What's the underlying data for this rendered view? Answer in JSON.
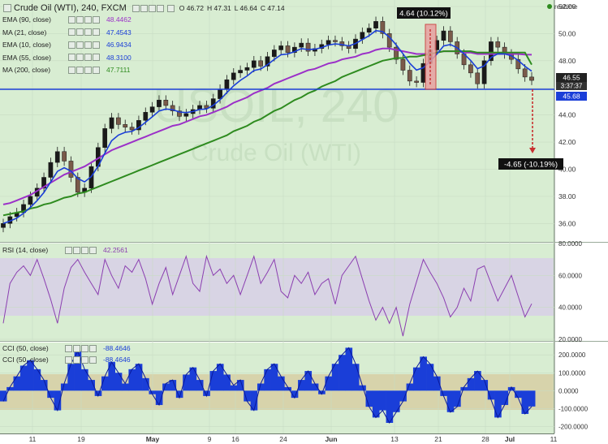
{
  "header": {
    "symbol_title": "Crude Oil (WTI), 240, FXCM",
    "ohlc_open": "O 46.72",
    "ohlc_high": "H 47.31",
    "ohlc_low": "L 46.64",
    "ohlc_close": "C 47.14",
    "realtime_label": "realtime"
  },
  "watermark": {
    "line1": "USOIL, 240",
    "line2": "Crude Oil (WTI)"
  },
  "price_panel": {
    "indicators": [
      {
        "label": "EMA (90, close)",
        "value": "48.4462",
        "color": "#9b30c8"
      },
      {
        "label": "MA (21, close)",
        "value": "47.4543",
        "color": "#1a3ed8"
      },
      {
        "label": "EMA (10, close)",
        "value": "46.9434",
        "color": "#1a3ed8"
      },
      {
        "label": "EMA (55, close)",
        "value": "48.3100",
        "color": "#1a3ed8"
      },
      {
        "label": "MA (200, close)",
        "value": "47.7111",
        "color": "#2e8b1f"
      }
    ],
    "current_price": "46.55",
    "countdown": "3:37:37",
    "support_price": "45.68",
    "up_annotation": "4.64 (10.12%)",
    "down_annotation": "-4.65 (-10.19%)"
  },
  "rsi_panel": {
    "label": "RSI (14, close)",
    "value": "42.2561"
  },
  "cci_panel": {
    "labels": [
      {
        "label": "CCI (50, close)",
        "value": "-88.4646"
      },
      {
        "label": "CCI (50, close)",
        "value": "-88.4646"
      }
    ]
  },
  "colors": {
    "bg": "#d8edd2",
    "up_candle": "#1a1a1a",
    "ema90": "#9b30c8",
    "blue": "#1a3ed8",
    "ma200": "#2e8b1f",
    "rsi_line": "#8b3fb0",
    "cci_fill": "#1a3ed8",
    "rsi_band": "#d8d0e6",
    "cci_band": "#d7cfa6",
    "support_line": "#1a3ed8",
    "red_arrow": "#c83030"
  },
  "chart_data": [
    {
      "type": "line",
      "title": "Crude Oil (WTI), 240, FXCM",
      "x_tick_labels": [
        "11",
        "19",
        "May",
        "9",
        "16",
        "24",
        "Jun",
        "13",
        "21",
        "28",
        "Jul",
        "11"
      ],
      "ylim": [
        35,
        52
      ],
      "y_tick_labels": [
        "52.00",
        "50.00",
        "48.00",
        "46.00",
        "44.00",
        "42.00",
        "40.00",
        "38.00",
        "36.00"
      ],
      "series": [
        {
          "name": "Close",
          "values": [
            36.0,
            36.5,
            36.8,
            37.4,
            38.0,
            38.6,
            39.4,
            40.5,
            41.3,
            40.6,
            39.4,
            38.3,
            38.6,
            40.2,
            41.6,
            43.0,
            43.8,
            43.3,
            43.1,
            42.9,
            43.6,
            44.2,
            44.6,
            45.1,
            44.7,
            44.3,
            43.9,
            44.1,
            44.4,
            44.7,
            44.5,
            45.2,
            45.9,
            46.6,
            47.1,
            47.3,
            47.5,
            48.0,
            47.6,
            48.3,
            48.8,
            49.1,
            48.6,
            49.0,
            49.3,
            48.7,
            48.9,
            49.2,
            49.5,
            49.4,
            49.1,
            48.9,
            49.6,
            50.1,
            50.4,
            50.9,
            50.0,
            49.0,
            48.1,
            47.3,
            46.5,
            46.4,
            47.8,
            48.8,
            49.5,
            50.2,
            49.4,
            48.5,
            47.7,
            47.1,
            46.3,
            48.0,
            49.4,
            49.0,
            48.5,
            48.1,
            47.4,
            46.8,
            46.55
          ]
        },
        {
          "name": "EMA (90, close)",
          "values": [
            37.4,
            37.5,
            37.7,
            37.9,
            38.1,
            38.4,
            38.7,
            39.0,
            39.3,
            39.6,
            39.8,
            40.0,
            40.2,
            40.5,
            40.8,
            41.1,
            41.4,
            41.6,
            41.8,
            42.0,
            42.2,
            42.4,
            42.6,
            42.8,
            43.0,
            43.2,
            43.3,
            43.5,
            43.7,
            43.9,
            44.0,
            44.2,
            44.4,
            44.6,
            44.9,
            45.1,
            45.3,
            45.6,
            45.8,
            46.0,
            46.3,
            46.5,
            46.7,
            46.9,
            47.1,
            47.3,
            47.4,
            47.6,
            47.8,
            47.9,
            48.1,
            48.2,
            48.3,
            48.5,
            48.6,
            48.8,
            48.9,
            48.9,
            48.8,
            48.7,
            48.6,
            48.5,
            48.5,
            48.5,
            48.6,
            48.7,
            48.7,
            48.7,
            48.6,
            48.6,
            48.5,
            48.5,
            48.5,
            48.5,
            48.5,
            48.5,
            48.5,
            48.45,
            48.4462
          ]
        },
        {
          "name": "MA (200, close)",
          "values": [
            36.6,
            36.7,
            36.8,
            36.9,
            37.1,
            37.2,
            37.4,
            37.5,
            37.7,
            37.9,
            38.0,
            38.2,
            38.3,
            38.5,
            38.7,
            38.9,
            39.1,
            39.3,
            39.5,
            39.7,
            39.9,
            40.1,
            40.3,
            40.5,
            40.7,
            40.9,
            41.1,
            41.3,
            41.5,
            41.7,
            41.9,
            42.1,
            42.3,
            42.5,
            42.8,
            43.0,
            43.2,
            43.5,
            43.7,
            44.0,
            44.3,
            44.5,
            44.8,
            45.1,
            45.3,
            45.6,
            45.8,
            46.1,
            46.3,
            46.5,
            46.8,
            47.0,
            47.2,
            47.4,
            47.6,
            47.8,
            48.0,
            48.1,
            48.2,
            48.2,
            48.3,
            48.3,
            48.4,
            48.5,
            48.6,
            48.7,
            48.7,
            48.7,
            48.7,
            48.7,
            48.6,
            48.6,
            48.6,
            48.6,
            48.6,
            48.6,
            48.6,
            48.6,
            47.7111
          ]
        }
      ]
    },
    {
      "type": "line",
      "title": "RSI (14, close)",
      "ylim": [
        20,
        80
      ],
      "y_tick_labels": [
        "80.0000",
        "60.0000",
        "40.0000",
        "20.0000"
      ],
      "series": [
        {
          "name": "RSI (14, close)",
          "values": [
            30,
            55,
            62,
            66,
            60,
            70,
            58,
            45,
            30,
            52,
            65,
            70,
            62,
            55,
            48,
            70,
            60,
            52,
            66,
            62,
            70,
            58,
            42,
            55,
            65,
            48,
            60,
            72,
            55,
            50,
            72,
            60,
            64,
            55,
            60,
            48,
            60,
            72,
            55,
            62,
            70,
            50,
            46,
            60,
            55,
            62,
            48,
            55,
            58,
            42,
            60,
            66,
            72,
            58,
            44,
            32,
            40,
            30,
            40,
            22,
            42,
            56,
            70,
            62,
            55,
            46,
            34,
            40,
            52,
            44,
            64,
            66,
            55,
            44,
            52,
            60,
            47,
            34,
            42.2561
          ]
        }
      ]
    },
    {
      "type": "bar",
      "title": "CCI (50, close)",
      "ylim": [
        -230,
        260
      ],
      "y_tick_labels": [
        "200.0000",
        "100.0000",
        "0.0000",
        "-100.0000",
        "-200.0000"
      ],
      "series": [
        {
          "name": "CCI (50, close)",
          "values": [
            -60,
            20,
            80,
            140,
            170,
            120,
            60,
            -40,
            -110,
            40,
            150,
            220,
            120,
            60,
            -30,
            80,
            160,
            100,
            40,
            120,
            150,
            70,
            -20,
            -80,
            40,
            60,
            -40,
            90,
            130,
            60,
            -30,
            110,
            150,
            90,
            30,
            60,
            -60,
            -110,
            40,
            120,
            150,
            80,
            20,
            -40,
            60,
            110,
            40,
            -20,
            80,
            150,
            200,
            240,
            150,
            30,
            -90,
            -150,
            -110,
            -180,
            -120,
            -60,
            40,
            130,
            190,
            150,
            80,
            -30,
            -120,
            -90,
            20,
            70,
            110,
            60,
            -50,
            -150,
            -80,
            20,
            -40,
            -130,
            -88.4646
          ]
        }
      ]
    }
  ]
}
